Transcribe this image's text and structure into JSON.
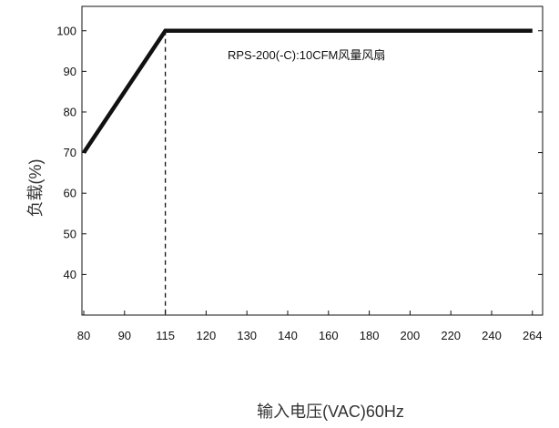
{
  "chart_data": {
    "type": "line",
    "title": "",
    "xlabel": "输入电压(VAC)60Hz",
    "ylabel": "负载(%)",
    "x_categories": [
      "80",
      "90",
      "115",
      "120",
      "130",
      "140",
      "160",
      "180",
      "200",
      "220",
      "240",
      "264"
    ],
    "ylim": [
      30,
      106
    ],
    "y_ticks": [
      "40",
      "50",
      "60",
      "70",
      "80",
      "90",
      "100"
    ],
    "grid": false,
    "series": [
      {
        "points": [
          {
            "x": "80",
            "y": 70
          },
          {
            "x": "115",
            "y": 100
          },
          {
            "x": "264",
            "y": 100
          }
        ]
      }
    ],
    "reference_line": {
      "x": "115",
      "style": "dashed"
    },
    "annotation": "RPS-200(-C):10CFM风量风扇",
    "colors": {
      "line": "#111111",
      "axis": "#111111",
      "axis_title": "#333333"
    }
  }
}
